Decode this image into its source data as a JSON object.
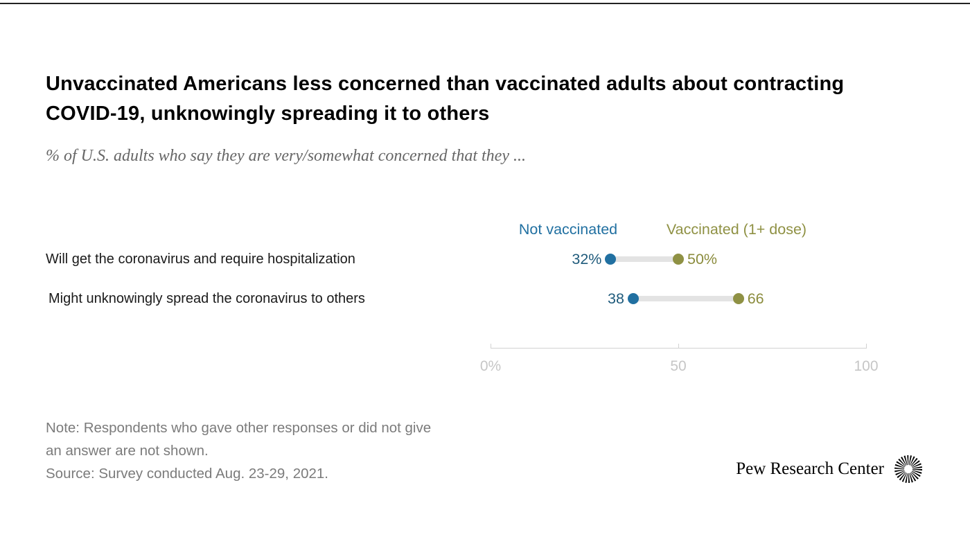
{
  "top_rule_color": "#222222",
  "chart_data": {
    "type": "scatter",
    "subtype": "dot-plot-dumbbell",
    "title": "Unvaccinated Americans less concerned than vaccinated adults about contracting COVID-19, unknowingly spreading it to others",
    "subtitle": "% of U.S. adults who say they are very/somewhat concerned that they ...",
    "categories": [
      "Will get the coronavirus and require hospitalization",
      "Might unknowingly spread the coronavirus to others"
    ],
    "series": [
      {
        "name": "Not vaccinated",
        "color": "#2170a1",
        "label_color": "#1e5a7b",
        "values": [
          32,
          38
        ],
        "labels": [
          "32%",
          "38"
        ]
      },
      {
        "name": "Vaccinated (1+ dose)",
        "color": "#8f9144",
        "label_color": "#8b8c3d",
        "values": [
          50,
          66
        ],
        "labels": [
          "50%",
          "66"
        ]
      }
    ],
    "xlim": [
      0,
      100
    ],
    "x_ticks": [
      {
        "value": 0,
        "label": "0%"
      },
      {
        "value": 50,
        "label": "50"
      },
      {
        "value": 100,
        "label": "100"
      }
    ],
    "grid": false,
    "legend_position": "top",
    "connector_color": "#e3e3e3",
    "axis_color": "#d2d2d2",
    "tick_label_color": "#c6c6c6"
  },
  "footer": {
    "note_line1": "Note: Respondents who gave other responses or did not give",
    "note_line2": "an answer are not shown.",
    "source": "Source: Survey conducted Aug. 23-29, 2021.",
    "brand": "Pew Research Center"
  }
}
